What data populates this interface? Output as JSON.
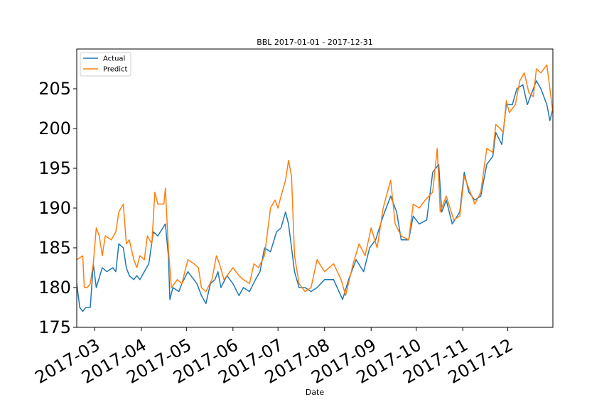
{
  "chart_data": {
    "type": "line",
    "title": "BBL 2017-01-01 - 2017-12-31",
    "xlabel": "Date",
    "ylabel": "",
    "ylim": [
      175,
      210
    ],
    "xlim": [
      "2017-02-17",
      "2017-12-31"
    ],
    "y_ticks": [
      175,
      180,
      185,
      190,
      195,
      200,
      205
    ],
    "x_ticks": [
      "2017-03",
      "2017-04",
      "2017-05",
      "2017-06",
      "2017-07",
      "2017-08",
      "2017-09",
      "2017-10",
      "2017-11",
      "2017-12"
    ],
    "x_tick_dates": [
      "2017-03-01",
      "2017-04-01",
      "2017-05-01",
      "2017-06-01",
      "2017-07-01",
      "2017-08-01",
      "2017-09-01",
      "2017-10-01",
      "2017-11-01",
      "2017-12-01"
    ],
    "grid": false,
    "legend_position": "upper-left",
    "series": [
      {
        "name": "Actual",
        "color": "#1f77b4",
        "points": [
          [
            "2017-02-17",
            180.5
          ],
          [
            "2017-02-19",
            177.5
          ],
          [
            "2017-02-21",
            177.0
          ],
          [
            "2017-02-23",
            177.5
          ],
          [
            "2017-02-26",
            177.5
          ],
          [
            "2017-02-28",
            183.0
          ],
          [
            "2017-03-02",
            180.0
          ],
          [
            "2017-03-06",
            182.5
          ],
          [
            "2017-03-09",
            182.0
          ],
          [
            "2017-03-13",
            182.5
          ],
          [
            "2017-03-15",
            182.0
          ],
          [
            "2017-03-17",
            185.5
          ],
          [
            "2017-03-20",
            185.0
          ],
          [
            "2017-03-22",
            182.5
          ],
          [
            "2017-03-24",
            181.5
          ],
          [
            "2017-03-27",
            181.0
          ],
          [
            "2017-03-29",
            181.5
          ],
          [
            "2017-03-31",
            181.0
          ],
          [
            "2017-04-03",
            182.0
          ],
          [
            "2017-04-06",
            183.0
          ],
          [
            "2017-04-09",
            187.0
          ],
          [
            "2017-04-12",
            186.5
          ],
          [
            "2017-04-17",
            188.0
          ],
          [
            "2017-04-19",
            184.0
          ],
          [
            "2017-04-20",
            178.5
          ],
          [
            "2017-04-22",
            180.0
          ],
          [
            "2017-04-26",
            179.5
          ],
          [
            "2017-04-28",
            180.5
          ],
          [
            "2017-05-02",
            182.0
          ],
          [
            "2017-05-08",
            180.5
          ],
          [
            "2017-05-11",
            179.0
          ],
          [
            "2017-05-14",
            178.0
          ],
          [
            "2017-05-17",
            180.5
          ],
          [
            "2017-05-20",
            181.0
          ],
          [
            "2017-05-22",
            182.0
          ],
          [
            "2017-05-24",
            180.0
          ],
          [
            "2017-05-28",
            181.5
          ],
          [
            "2017-06-01",
            180.5
          ],
          [
            "2017-06-05",
            179.0
          ],
          [
            "2017-06-08",
            180.0
          ],
          [
            "2017-06-12",
            179.5
          ],
          [
            "2017-06-16",
            181.0
          ],
          [
            "2017-06-19",
            182.0
          ],
          [
            "2017-06-22",
            185.0
          ],
          [
            "2017-06-26",
            184.5
          ],
          [
            "2017-06-30",
            187.0
          ],
          [
            "2017-07-03",
            187.5
          ],
          [
            "2017-07-06",
            189.5
          ],
          [
            "2017-07-08",
            188.0
          ],
          [
            "2017-07-12",
            182.0
          ],
          [
            "2017-07-15",
            180.0
          ],
          [
            "2017-07-19",
            180.0
          ],
          [
            "2017-07-23",
            179.5
          ],
          [
            "2017-07-27",
            180.0
          ],
          [
            "2017-08-01",
            181.0
          ],
          [
            "2017-08-07",
            181.0
          ],
          [
            "2017-08-13",
            178.5
          ],
          [
            "2017-08-17",
            181.0
          ],
          [
            "2017-08-22",
            183.5
          ],
          [
            "2017-08-27",
            182.0
          ],
          [
            "2017-08-31",
            185.0
          ],
          [
            "2017-09-04",
            186.0
          ],
          [
            "2017-09-09",
            189.0
          ],
          [
            "2017-09-14",
            191.5
          ],
          [
            "2017-09-18",
            189.5
          ],
          [
            "2017-09-21",
            186.0
          ],
          [
            "2017-09-26",
            186.0
          ],
          [
            "2017-09-29",
            189.0
          ],
          [
            "2017-10-03",
            188.0
          ],
          [
            "2017-10-08",
            188.5
          ],
          [
            "2017-10-12",
            194.5
          ],
          [
            "2017-10-16",
            195.5
          ],
          [
            "2017-10-18",
            189.5
          ],
          [
            "2017-10-21",
            191.0
          ],
          [
            "2017-10-25",
            188.0
          ],
          [
            "2017-10-30",
            189.5
          ],
          [
            "2017-11-02",
            194.5
          ],
          [
            "2017-11-05",
            192.0
          ],
          [
            "2017-11-09",
            191.0
          ],
          [
            "2017-11-13",
            191.5
          ],
          [
            "2017-11-17",
            195.5
          ],
          [
            "2017-11-21",
            196.5
          ],
          [
            "2017-11-23",
            199.5
          ],
          [
            "2017-11-27",
            198.0
          ],
          [
            "2017-11-30",
            203.0
          ],
          [
            "2017-12-04",
            203.0
          ],
          [
            "2017-12-07",
            205.0
          ],
          [
            "2017-12-11",
            205.5
          ],
          [
            "2017-12-14",
            203.0
          ],
          [
            "2017-12-18",
            205.0
          ],
          [
            "2017-12-20",
            206.0
          ],
          [
            "2017-12-23",
            205.0
          ],
          [
            "2017-12-27",
            203.0
          ],
          [
            "2017-12-29",
            201.0
          ],
          [
            "2017-12-31",
            202.5
          ]
        ]
      },
      {
        "name": "Predict",
        "color": "#ff7f0e",
        "points": [
          [
            "2017-02-17",
            183.5
          ],
          [
            "2017-02-21",
            184.0
          ],
          [
            "2017-02-22",
            180.0
          ],
          [
            "2017-02-24",
            180.0
          ],
          [
            "2017-02-26",
            180.5
          ],
          [
            "2017-02-28",
            183.0
          ],
          [
            "2017-03-02",
            187.5
          ],
          [
            "2017-03-04",
            186.5
          ],
          [
            "2017-03-06",
            184.0
          ],
          [
            "2017-03-08",
            186.5
          ],
          [
            "2017-03-12",
            186.0
          ],
          [
            "2017-03-15",
            187.0
          ],
          [
            "2017-03-17",
            189.5
          ],
          [
            "2017-03-20",
            190.5
          ],
          [
            "2017-03-22",
            185.5
          ],
          [
            "2017-03-24",
            186.0
          ],
          [
            "2017-03-27",
            183.5
          ],
          [
            "2017-03-29",
            182.5
          ],
          [
            "2017-03-31",
            184.0
          ],
          [
            "2017-04-03",
            183.5
          ],
          [
            "2017-04-05",
            186.5
          ],
          [
            "2017-04-08",
            185.5
          ],
          [
            "2017-04-10",
            192.0
          ],
          [
            "2017-04-12",
            190.5
          ],
          [
            "2017-04-16",
            190.5
          ],
          [
            "2017-04-17",
            192.5
          ],
          [
            "2017-04-19",
            185.0
          ],
          [
            "2017-04-21",
            180.0
          ],
          [
            "2017-04-25",
            181.0
          ],
          [
            "2017-04-28",
            180.5
          ],
          [
            "2017-05-02",
            183.5
          ],
          [
            "2017-05-06",
            183.0
          ],
          [
            "2017-05-09",
            182.5
          ],
          [
            "2017-05-11",
            180.0
          ],
          [
            "2017-05-14",
            179.5
          ],
          [
            "2017-05-18",
            181.0
          ],
          [
            "2017-05-21",
            184.0
          ],
          [
            "2017-05-23",
            183.0
          ],
          [
            "2017-05-26",
            181.0
          ],
          [
            "2017-06-01",
            182.5
          ],
          [
            "2017-06-05",
            181.5
          ],
          [
            "2017-06-08",
            181.0
          ],
          [
            "2017-06-12",
            180.5
          ],
          [
            "2017-06-15",
            183.0
          ],
          [
            "2017-06-18",
            182.5
          ],
          [
            "2017-06-22",
            184.0
          ],
          [
            "2017-06-26",
            190.0
          ],
          [
            "2017-06-29",
            191.0
          ],
          [
            "2017-07-01",
            190.0
          ],
          [
            "2017-07-03",
            191.5
          ],
          [
            "2017-07-06",
            193.5
          ],
          [
            "2017-07-08",
            196.0
          ],
          [
            "2017-07-10",
            194.0
          ],
          [
            "2017-07-12",
            184.0
          ],
          [
            "2017-07-15",
            180.5
          ],
          [
            "2017-07-19",
            179.5
          ],
          [
            "2017-07-23",
            180.0
          ],
          [
            "2017-07-27",
            183.5
          ],
          [
            "2017-08-01",
            182.0
          ],
          [
            "2017-08-07",
            183.0
          ],
          [
            "2017-08-12",
            181.0
          ],
          [
            "2017-08-15",
            179.0
          ],
          [
            "2017-08-20",
            183.0
          ],
          [
            "2017-08-24",
            185.5
          ],
          [
            "2017-08-28",
            184.0
          ],
          [
            "2017-09-01",
            187.5
          ],
          [
            "2017-09-05",
            185.0
          ],
          [
            "2017-09-09",
            190.0
          ],
          [
            "2017-09-14",
            193.5
          ],
          [
            "2017-09-17",
            188.0
          ],
          [
            "2017-09-21",
            186.5
          ],
          [
            "2017-09-26",
            186.0
          ],
          [
            "2017-09-29",
            190.5
          ],
          [
            "2017-10-03",
            190.0
          ],
          [
            "2017-10-07",
            191.0
          ],
          [
            "2017-10-12",
            192.0
          ],
          [
            "2017-10-15",
            197.5
          ],
          [
            "2017-10-17",
            189.5
          ],
          [
            "2017-10-21",
            191.5
          ],
          [
            "2017-10-26",
            188.5
          ],
          [
            "2017-10-30",
            189.0
          ],
          [
            "2017-11-02",
            194.0
          ],
          [
            "2017-11-05",
            192.5
          ],
          [
            "2017-11-09",
            190.5
          ],
          [
            "2017-11-13",
            192.0
          ],
          [
            "2017-11-17",
            197.5
          ],
          [
            "2017-11-21",
            197.0
          ],
          [
            "2017-11-23",
            200.5
          ],
          [
            "2017-11-26",
            200.0
          ],
          [
            "2017-11-28",
            199.5
          ],
          [
            "2017-11-30",
            203.5
          ],
          [
            "2017-12-02",
            202.0
          ],
          [
            "2017-12-06",
            203.0
          ],
          [
            "2017-12-09",
            206.0
          ],
          [
            "2017-12-12",
            207.0
          ],
          [
            "2017-12-15",
            204.5
          ],
          [
            "2017-12-18",
            204.0
          ],
          [
            "2017-12-20",
            207.5
          ],
          [
            "2017-12-23",
            207.0
          ],
          [
            "2017-12-27",
            208.0
          ],
          [
            "2017-12-29",
            205.0
          ],
          [
            "2017-12-31",
            202.0
          ]
        ]
      }
    ]
  }
}
